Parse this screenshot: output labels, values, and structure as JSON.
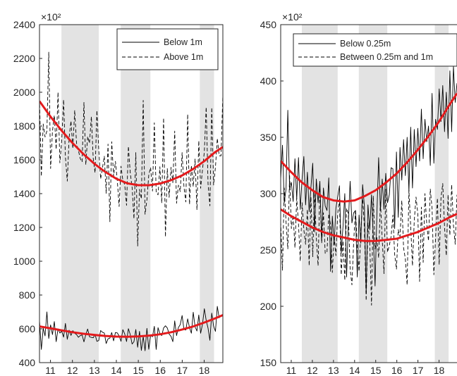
{
  "chart_data": [
    {
      "type": "line",
      "exponent_label": "×10²",
      "xlim": [
        10.5,
        18.85
      ],
      "ylim": [
        400,
        2400
      ],
      "xticks": [
        "11",
        "12",
        "13",
        "14",
        "15",
        "16",
        "17",
        "18"
      ],
      "yticks": [
        "400",
        "600",
        "800",
        "1000",
        "1200",
        "1400",
        "1600",
        "1800",
        "2000",
        "2200",
        "2400"
      ],
      "shaded_bands": [
        [
          11.5,
          13.2
        ],
        [
          14.2,
          15.55
        ],
        [
          17.8,
          18.45
        ]
      ],
      "legend_position": "top-right",
      "series": [
        {
          "name": "Below 1m",
          "style": "solid",
          "color": "#000000",
          "values": [
            648,
            478,
            604,
            558,
            700,
            543,
            623,
            566,
            643,
            524,
            600,
            575,
            586,
            551,
            632,
            538,
            592,
            561,
            589,
            574,
            566,
            550,
            560,
            564,
            523,
            566,
            599,
            553,
            549,
            547,
            566,
            526,
            531,
            590,
            580,
            575,
            513,
            541,
            545,
            578,
            529,
            578,
            576,
            558,
            526,
            595,
            570,
            525,
            601,
            566,
            510,
            524,
            596,
            491,
            585,
            472,
            555,
            470,
            603,
            479,
            562,
            553,
            615,
            478,
            607,
            571,
            560,
            605,
            618,
            605,
            569,
            556,
            524,
            647,
            560,
            608,
            625,
            679,
            596,
            593,
            659,
            607,
            574,
            698,
            612,
            587,
            682,
            574,
            627,
            719,
            650,
            604,
            532,
            693,
            616,
            585,
            733,
            665,
            680,
            681
          ]
        },
        {
          "name": "Above 1m",
          "style": "dashed",
          "color": "#000000",
          "values": [
            1963,
            1502,
            1812,
            1735,
            1771,
            2237,
            1549,
            1769,
            1864,
            1662,
            2000,
            1582,
            1716,
            1956,
            1617,
            1474,
            1731,
            1830,
            1666,
            1893,
            1698,
            1656,
            1608,
            1587,
            1940,
            1571,
            1738,
            1698,
            1856,
            1610,
            1523,
            1892,
            1657,
            1487,
            1552,
            1621,
            1402,
            1693,
            1234,
            1707,
            1502,
            1591,
            1478,
            1324,
            1562,
            1479,
            1454,
            1331,
            1680,
            1522,
            1437,
            1251,
            1643,
            1090,
            1425,
            1369,
            1952,
            1278,
            1364,
            1511,
            1555,
            1415,
            1819,
            1408,
            1393,
            1559,
            1344,
            1848,
            1144,
            1548,
            1378,
            1556,
            1465,
            1770,
            1343,
            1450,
            1412,
            1643,
            1440,
            1351,
            1870,
            1336,
            1567,
            1441,
            1605,
            1304,
            1713,
            1432,
            1541,
            1648,
            1912,
            1458,
            1328,
            1910,
            1451,
            1556,
            1727,
            1624,
            1624,
            1986
          ]
        },
        {
          "name": "",
          "style": "fit",
          "color": "#e41a1c",
          "x": [
            10.5,
            11,
            11.5,
            12,
            12.5,
            13,
            13.5,
            14,
            14.5,
            15,
            15.5,
            16,
            16.5,
            17,
            17.5,
            18,
            18.5,
            18.85
          ],
          "values": [
            614,
            603,
            591,
            580,
            571,
            564,
            558,
            554,
            553,
            555,
            560,
            568,
            580,
            596,
            614,
            637,
            662,
            681
          ]
        },
        {
          "name": "",
          "style": "fit",
          "color": "#e41a1c",
          "x": [
            10.5,
            11,
            11.5,
            12,
            12.5,
            13,
            13.5,
            14,
            14.5,
            15,
            15.5,
            16,
            16.5,
            17,
            17.5,
            18,
            18.5,
            18.85
          ],
          "values": [
            1947,
            1856,
            1774,
            1700,
            1634,
            1577,
            1528,
            1488,
            1461,
            1450,
            1450,
            1460,
            1480,
            1508,
            1546,
            1592,
            1646,
            1676
          ]
        }
      ]
    },
    {
      "type": "line",
      "exponent_label": "×10²",
      "xlim": [
        10.5,
        18.85
      ],
      "ylim": [
        150,
        450
      ],
      "xticks": [
        "11",
        "12",
        "13",
        "14",
        "15",
        "16",
        "17",
        "18"
      ],
      "yticks": [
        "150",
        "200",
        "250",
        "300",
        "350",
        "400",
        "450"
      ],
      "shaded_bands": [
        [
          11.5,
          13.2
        ],
        [
          14.2,
          15.55
        ],
        [
          17.8,
          18.45
        ]
      ],
      "legend_position": "top-left",
      "series": [
        {
          "name": "Below 0.25m",
          "style": "solid",
          "color": "#000000",
          "values": [
            313,
            343,
            292,
            304,
            374,
            304,
            310,
            293,
            331,
            295,
            332,
            286,
            313,
            333,
            290,
            319,
            284,
            306,
            327,
            266,
            313,
            292,
            311,
            258,
            305,
            289,
            285,
            314,
            231,
            280,
            255,
            287,
            297,
            307,
            247,
            271,
            300,
            226,
            275,
            311,
            274,
            283,
            285,
            226,
            281,
            256,
            308,
            289,
            211,
            290,
            268,
            299,
            262,
            218,
            281,
            332,
            285,
            313,
            286,
            318,
            292,
            299,
            323,
            322,
            269,
            337,
            279,
            341,
            312,
            348,
            316,
            350,
            302,
            359,
            305,
            357,
            324,
            358,
            329,
            375,
            331,
            366,
            346,
            360,
            325,
            389,
            327,
            366,
            357,
            393,
            364,
            396,
            355,
            390,
            349,
            409,
            355,
            413,
            381,
            398
          ]
        },
        {
          "name": "Between 0.25m and 1m",
          "style": "dashed",
          "color": "#000000",
          "values": [
            275,
            232,
            305,
            275,
            251,
            316,
            269,
            281,
            252,
            296,
            273,
            240,
            292,
            268,
            255,
            286,
            236,
            297,
            244,
            301,
            261,
            236,
            306,
            256,
            283,
            247,
            248,
            282,
            272,
            230,
            263,
            245,
            282,
            295,
            228,
            258,
            223,
            287,
            282,
            233,
            219,
            258,
            286,
            253,
            231,
            264,
            298,
            270,
            205,
            274,
            257,
            201,
            298,
            251,
            261,
            243,
            293,
            260,
            229,
            304,
            248,
            254,
            262,
            281,
            246,
            233,
            268,
            262,
            294,
            252,
            242,
            219,
            303,
            271,
            236,
            276,
            297,
            282,
            222,
            288,
            239,
            300,
            273,
            258,
            304,
            287,
            228,
            262,
            296,
            237,
            296,
            309,
            271,
            245,
            299,
            263,
            308,
            272,
            255,
            299
          ]
        },
        {
          "name": "",
          "style": "fit",
          "color": "#e41a1c",
          "x": [
            10.5,
            11,
            11.5,
            12,
            12.5,
            13,
            13.5,
            14,
            14.5,
            15,
            15.5,
            16,
            16.5,
            17,
            17.5,
            18,
            18.5,
            18.85
          ],
          "values": [
            329,
            319,
            310,
            303,
            297,
            294,
            293,
            294,
            298,
            303,
            310,
            318,
            328,
            339,
            351,
            364,
            379,
            389
          ]
        },
        {
          "name": "",
          "style": "fit",
          "color": "#e41a1c",
          "x": [
            10.5,
            11,
            11.5,
            12,
            12.5,
            13,
            13.5,
            14,
            14.5,
            15,
            15.5,
            16,
            16.5,
            17,
            17.5,
            18,
            18.5,
            18.85
          ],
          "values": [
            286,
            280,
            275,
            270,
            266,
            263,
            261,
            259,
            258,
            258,
            259,
            260,
            263,
            266,
            270,
            274,
            279,
            282
          ]
        }
      ]
    }
  ]
}
